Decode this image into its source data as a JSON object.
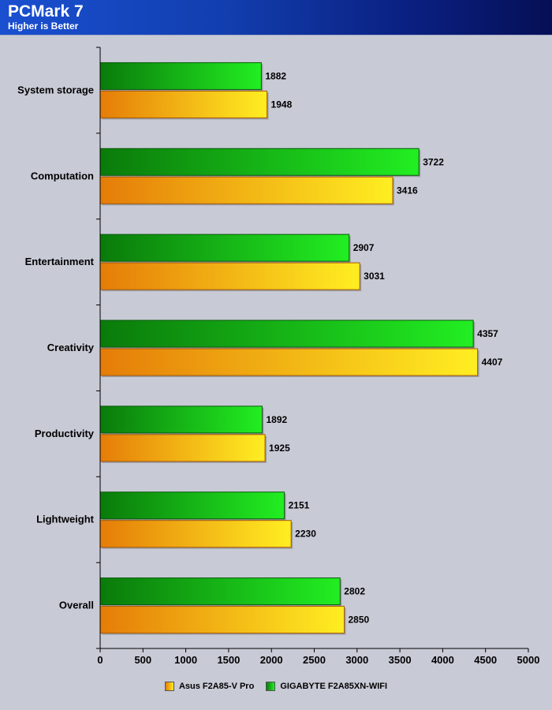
{
  "header": {
    "title": "PCMark 7",
    "subtitle": "Higher is Better"
  },
  "colors": {
    "asus_start": "#e57c08",
    "asus_end": "#ffee22",
    "gigabyte_start": "#0a7a0a",
    "gigabyte_end": "#22ee22",
    "background": "#c8cad6",
    "header_start": "#1a4fd0",
    "header_end": "#050f55"
  },
  "chart_data": {
    "type": "bar",
    "orientation": "horizontal",
    "title": "PCMark 7",
    "subtitle": "Higher is Better",
    "categories": [
      "System storage",
      "Computation",
      "Entertainment",
      "Creativity",
      "Productivity",
      "Lightweight",
      "Overall"
    ],
    "series": [
      {
        "name": "Asus F2A85-V Pro",
        "values": [
          1948,
          3416,
          3031,
          4407,
          1925,
          2230,
          2850
        ]
      },
      {
        "name": "GIGABYTE F2A85XN-WIFI",
        "values": [
          1882,
          3722,
          2907,
          4357,
          1892,
          2151,
          2802
        ]
      }
    ],
    "xlim": [
      0,
      5000
    ],
    "xticks": [
      0,
      500,
      1000,
      1500,
      2000,
      2500,
      3000,
      3500,
      4000,
      4500,
      5000
    ],
    "grid": false,
    "legend_position": "bottom"
  }
}
